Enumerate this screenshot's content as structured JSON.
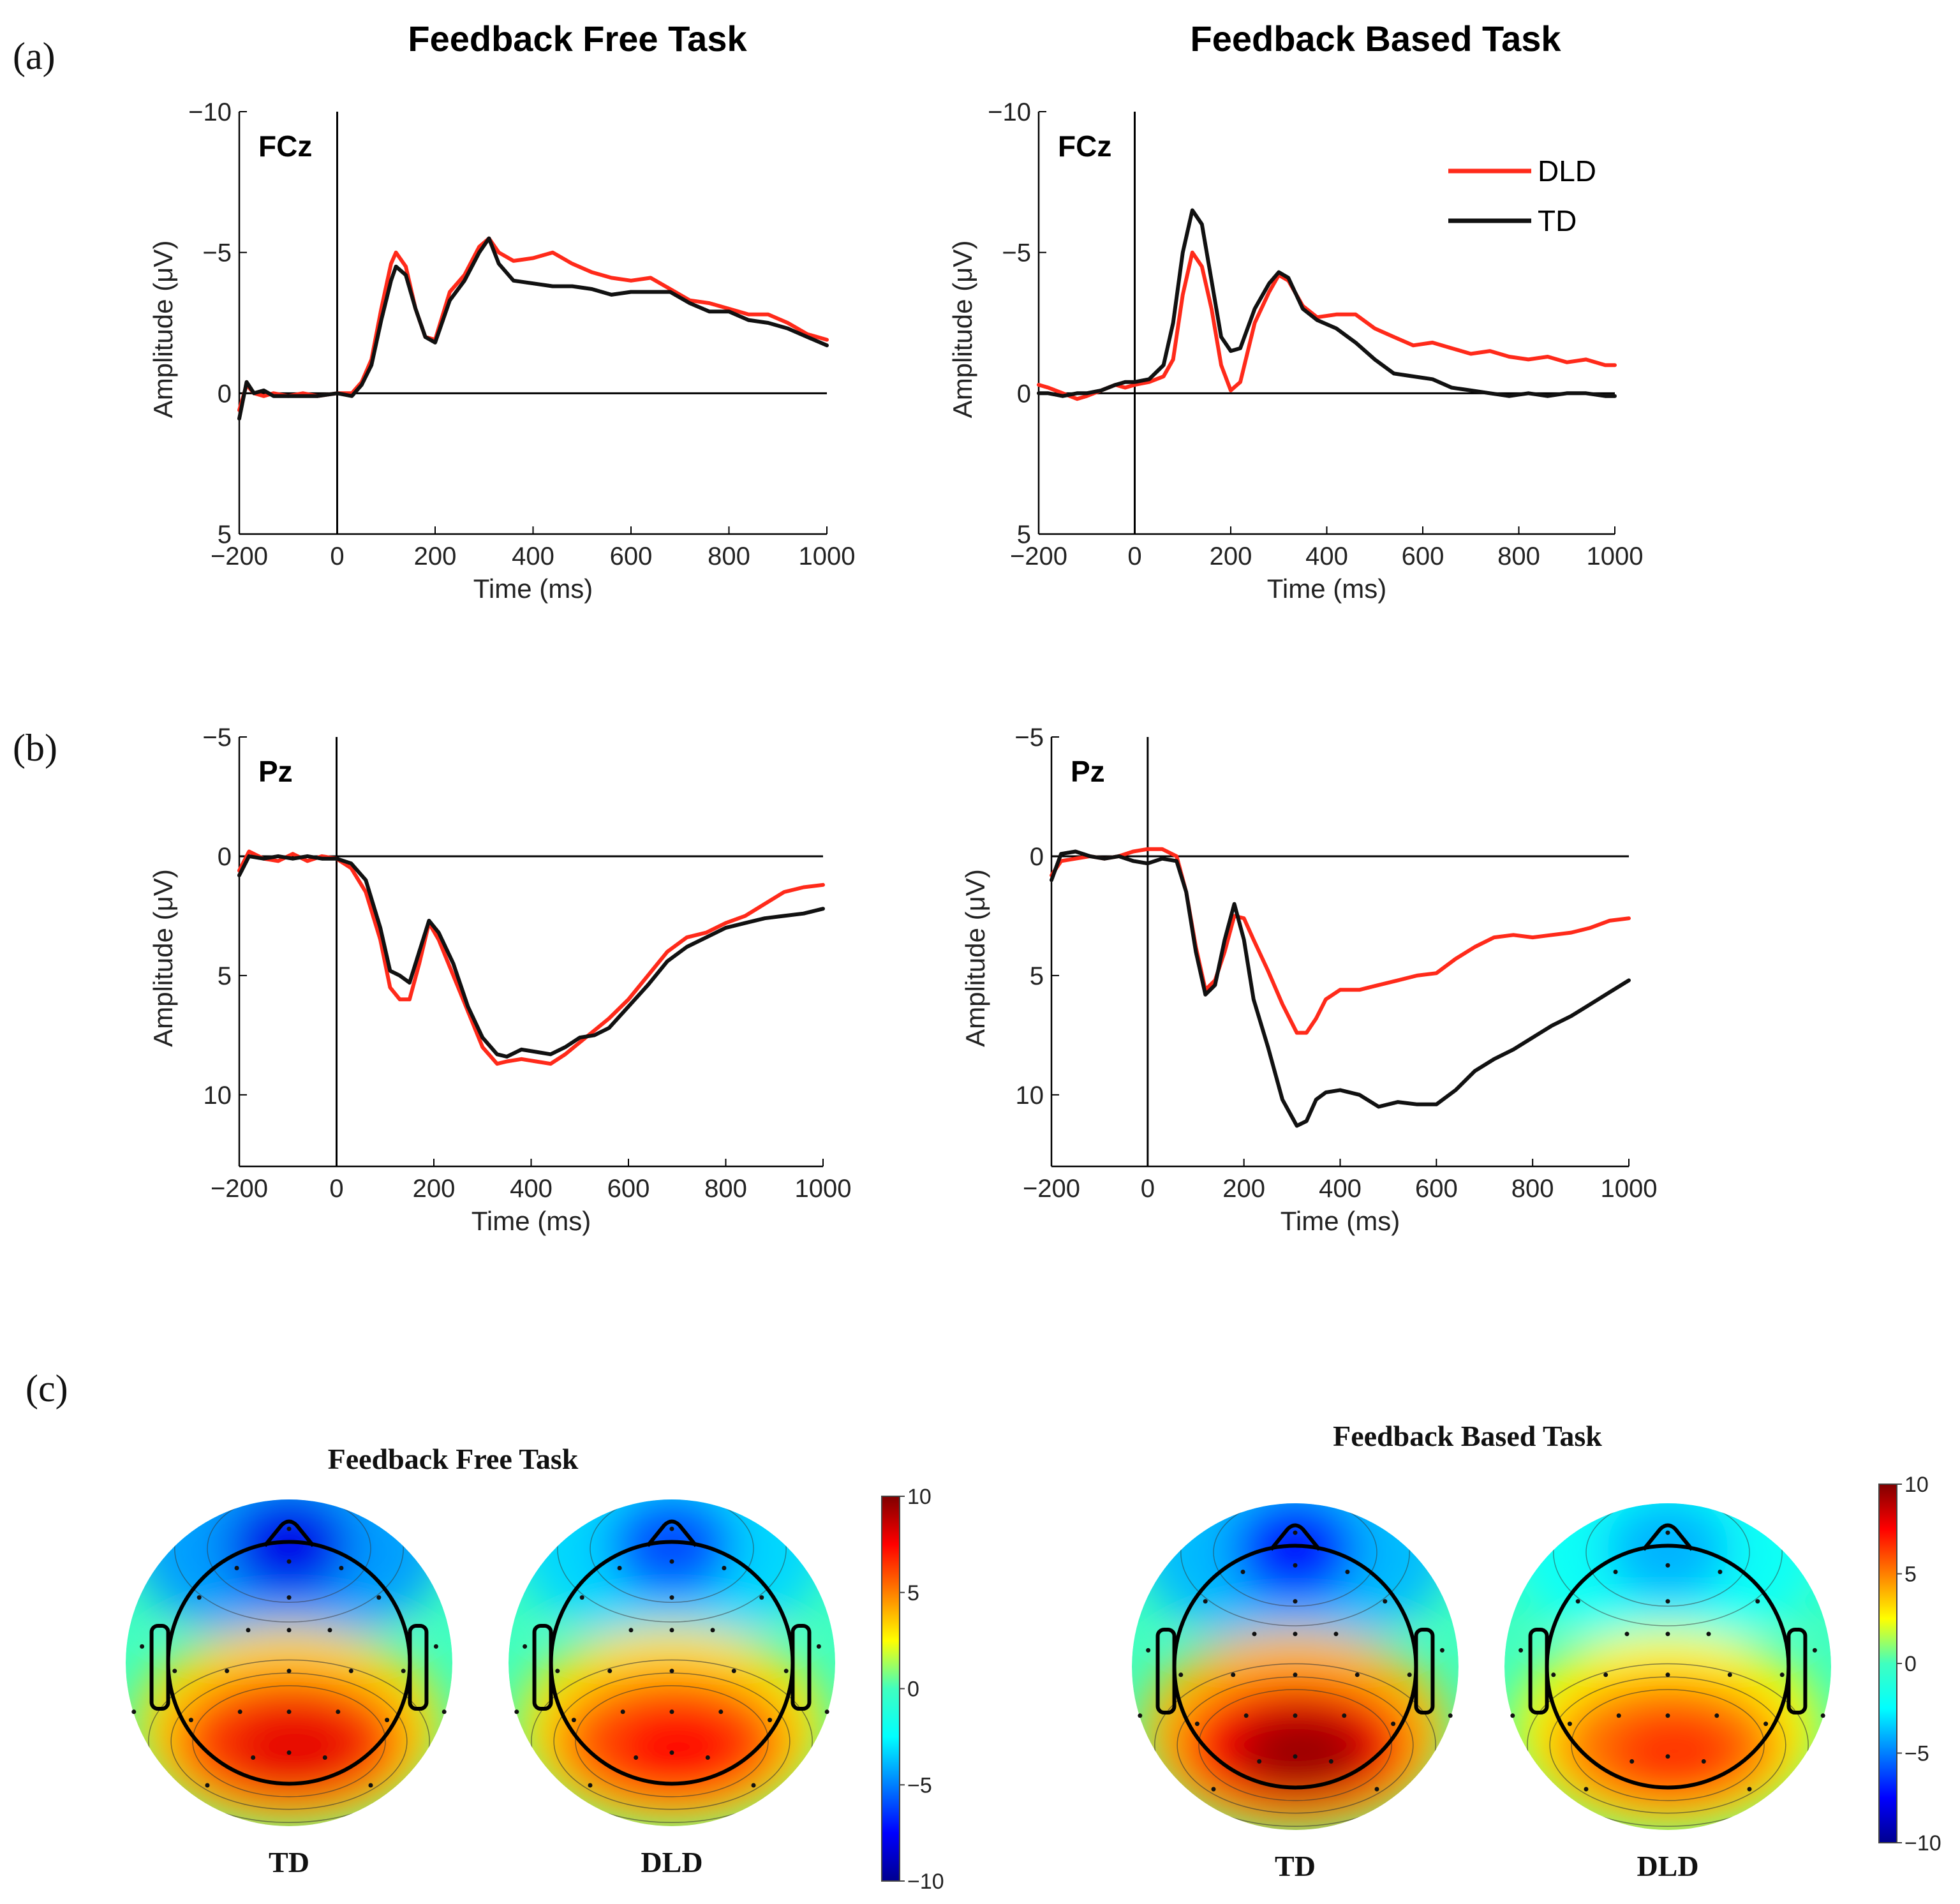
{
  "figure": {
    "panel_a_label": "(a)",
    "panel_b_label": "(b)",
    "panel_c_label": "(c)",
    "column_titles": [
      "Feedback Free Task",
      "Feedback Based Task"
    ]
  },
  "legend": {
    "entries": [
      {
        "name": "DLD",
        "color": "#ff2a1a"
      },
      {
        "name": "TD",
        "color": "#111111"
      }
    ]
  },
  "colors": {
    "dld": "#ff2a1a",
    "td": "#111111",
    "axis": "#000000"
  },
  "chart_data": [
    {
      "type": "line",
      "id": "fcz-free",
      "channel": "FCz",
      "task": "Feedback Free Task",
      "xlabel": "Time (ms)",
      "ylabel": "Amplitude (μV)",
      "xlim": [
        -200,
        1000
      ],
      "ylim": [
        -10,
        5
      ],
      "y_inverted": true,
      "xticks": [
        -200,
        0,
        200,
        400,
        600,
        800,
        1000
      ],
      "yticks": [
        -10,
        -5,
        0,
        5
      ],
      "xtick_labels": [
        "−200",
        "0",
        "200",
        "400",
        "600",
        "800",
        "1000"
      ],
      "ytick_labels": [
        "−10",
        "−5",
        "0",
        "5"
      ],
      "series": [
        {
          "name": "DLD",
          "x": [
            -200,
            -185,
            -170,
            -150,
            -130,
            -100,
            -70,
            -40,
            0,
            30,
            50,
            70,
            90,
            110,
            120,
            140,
            160,
            180,
            200,
            230,
            260,
            290,
            310,
            330,
            360,
            400,
            440,
            480,
            520,
            560,
            600,
            640,
            680,
            720,
            760,
            800,
            840,
            880,
            920,
            960,
            1000
          ],
          "y": [
            0.6,
            -0.3,
            0.0,
            0.1,
            0.0,
            0.1,
            0.0,
            0.1,
            0.0,
            0.0,
            -0.4,
            -1.2,
            -3.0,
            -4.6,
            -5.0,
            -4.5,
            -3.0,
            -2.0,
            -1.9,
            -3.6,
            -4.2,
            -5.2,
            -5.5,
            -5.0,
            -4.7,
            -4.8,
            -5.0,
            -4.6,
            -4.3,
            -4.1,
            -4.0,
            -4.1,
            -3.7,
            -3.3,
            -3.2,
            -3.0,
            -2.8,
            -2.8,
            -2.5,
            -2.1,
            -1.9
          ]
        },
        {
          "name": "TD",
          "x": [
            -200,
            -185,
            -170,
            -150,
            -130,
            -100,
            -70,
            -40,
            0,
            30,
            50,
            70,
            90,
            110,
            120,
            140,
            160,
            180,
            200,
            230,
            260,
            290,
            310,
            330,
            360,
            400,
            440,
            480,
            520,
            560,
            600,
            640,
            680,
            720,
            760,
            800,
            840,
            880,
            920,
            960,
            1000
          ],
          "y": [
            0.9,
            -0.4,
            0.0,
            -0.1,
            0.1,
            0.1,
            0.1,
            0.1,
            0.0,
            0.1,
            -0.3,
            -1.0,
            -2.6,
            -4.0,
            -4.5,
            -4.2,
            -3.0,
            -2.0,
            -1.8,
            -3.3,
            -4.0,
            -5.0,
            -5.5,
            -4.6,
            -4.0,
            -3.9,
            -3.8,
            -3.8,
            -3.7,
            -3.5,
            -3.6,
            -3.6,
            -3.6,
            -3.2,
            -2.9,
            -2.9,
            -2.6,
            -2.5,
            -2.3,
            -2.0,
            -1.7
          ]
        }
      ]
    },
    {
      "type": "line",
      "id": "fcz-based",
      "channel": "FCz",
      "task": "Feedback Based Task",
      "xlabel": "Time (ms)",
      "ylabel": "Amplitude (μV)",
      "xlim": [
        -200,
        1000
      ],
      "ylim": [
        -10,
        5
      ],
      "y_inverted": true,
      "xticks": [
        -200,
        0,
        200,
        400,
        600,
        800,
        1000
      ],
      "yticks": [
        -10,
        -5,
        0,
        5
      ],
      "xtick_labels": [
        "−200",
        "0",
        "200",
        "400",
        "600",
        "800",
        "1000"
      ],
      "ytick_labels": [
        "−10",
        "−5",
        "0",
        "5"
      ],
      "series": [
        {
          "name": "DLD",
          "x": [
            -200,
            -180,
            -150,
            -120,
            -100,
            -70,
            -40,
            -20,
            0,
            30,
            60,
            80,
            100,
            120,
            140,
            160,
            180,
            200,
            220,
            250,
            280,
            300,
            320,
            350,
            380,
            420,
            460,
            500,
            540,
            580,
            620,
            660,
            700,
            740,
            780,
            820,
            860,
            900,
            940,
            980,
            1000
          ],
          "y": [
            -0.3,
            -0.2,
            0.0,
            0.2,
            0.1,
            -0.1,
            -0.3,
            -0.2,
            -0.3,
            -0.4,
            -0.6,
            -1.2,
            -3.5,
            -5.0,
            -4.5,
            -3.0,
            -1.0,
            -0.1,
            -0.4,
            -2.5,
            -3.6,
            -4.2,
            -4.0,
            -3.1,
            -2.7,
            -2.8,
            -2.8,
            -2.3,
            -2.0,
            -1.7,
            -1.8,
            -1.6,
            -1.4,
            -1.5,
            -1.3,
            -1.2,
            -1.3,
            -1.1,
            -1.2,
            -1.0,
            -1.0
          ]
        },
        {
          "name": "TD",
          "x": [
            -200,
            -180,
            -150,
            -120,
            -100,
            -70,
            -40,
            -20,
            0,
            30,
            60,
            80,
            100,
            120,
            140,
            160,
            180,
            200,
            220,
            250,
            280,
            300,
            320,
            350,
            380,
            420,
            460,
            500,
            540,
            580,
            620,
            660,
            700,
            740,
            780,
            820,
            860,
            900,
            940,
            980,
            1000
          ],
          "y": [
            0.0,
            0.0,
            0.1,
            0.0,
            0.0,
            -0.1,
            -0.3,
            -0.4,
            -0.4,
            -0.5,
            -1.0,
            -2.5,
            -5.0,
            -6.5,
            -6.0,
            -4.0,
            -2.0,
            -1.5,
            -1.6,
            -3.0,
            -3.9,
            -4.3,
            -4.1,
            -3.0,
            -2.6,
            -2.3,
            -1.8,
            -1.2,
            -0.7,
            -0.6,
            -0.5,
            -0.2,
            -0.1,
            0.0,
            0.1,
            0.0,
            0.1,
            0.0,
            0.0,
            0.1,
            0.1
          ]
        }
      ]
    },
    {
      "type": "line",
      "id": "pz-free",
      "channel": "Pz",
      "task": "Feedback Free Task",
      "xlabel": "Time (ms)",
      "ylabel": "Amplitude (μV)",
      "xlim": [
        -200,
        1000
      ],
      "ylim": [
        -5,
        13
      ],
      "y_inverted": true,
      "xticks": [
        -200,
        0,
        200,
        400,
        600,
        800,
        1000
      ],
      "yticks": [
        -5,
        0,
        5,
        10
      ],
      "xtick_labels": [
        "−200",
        "0",
        "200",
        "400",
        "600",
        "800",
        "1000"
      ],
      "ytick_labels": [
        "−5",
        "0",
        "5",
        "10"
      ],
      "series": [
        {
          "name": "DLD",
          "x": [
            -200,
            -180,
            -150,
            -120,
            -90,
            -60,
            -30,
            0,
            30,
            60,
            90,
            110,
            130,
            150,
            170,
            190,
            210,
            240,
            270,
            300,
            330,
            350,
            380,
            410,
            440,
            470,
            500,
            530,
            560,
            600,
            640,
            680,
            720,
            760,
            800,
            840,
            880,
            920,
            960,
            1000
          ],
          "y": [
            0.6,
            -0.2,
            0.1,
            0.2,
            -0.1,
            0.2,
            0.0,
            0.1,
            0.5,
            1.5,
            3.5,
            5.5,
            6.0,
            6.0,
            4.5,
            2.8,
            3.5,
            5.0,
            6.5,
            8.0,
            8.7,
            8.6,
            8.5,
            8.6,
            8.7,
            8.3,
            7.8,
            7.3,
            6.8,
            6.0,
            5.0,
            4.0,
            3.4,
            3.2,
            2.8,
            2.5,
            2.0,
            1.5,
            1.3,
            1.2
          ]
        },
        {
          "name": "TD",
          "x": [
            -200,
            -180,
            -150,
            -120,
            -90,
            -60,
            -30,
            0,
            30,
            60,
            90,
            110,
            130,
            150,
            170,
            190,
            210,
            240,
            270,
            300,
            330,
            350,
            380,
            410,
            440,
            470,
            500,
            530,
            560,
            600,
            640,
            680,
            720,
            760,
            800,
            840,
            880,
            920,
            960,
            1000
          ],
          "y": [
            0.8,
            0.0,
            0.1,
            0.0,
            0.1,
            0.0,
            0.1,
            0.1,
            0.3,
            1.0,
            3.0,
            4.8,
            5.0,
            5.3,
            4.0,
            2.7,
            3.2,
            4.5,
            6.3,
            7.6,
            8.3,
            8.4,
            8.1,
            8.2,
            8.3,
            8.0,
            7.6,
            7.5,
            7.2,
            6.3,
            5.4,
            4.4,
            3.8,
            3.4,
            3.0,
            2.8,
            2.6,
            2.5,
            2.4,
            2.2
          ]
        }
      ]
    },
    {
      "type": "line",
      "id": "pz-based",
      "channel": "Pz",
      "task": "Feedback Based Task",
      "xlabel": "Time (ms)",
      "ylabel": "Amplitude (μV)",
      "xlim": [
        -200,
        1000
      ],
      "ylim": [
        -5,
        13
      ],
      "y_inverted": true,
      "xticks": [
        -200,
        0,
        200,
        400,
        600,
        800,
        1000
      ],
      "yticks": [
        -5,
        0,
        5,
        10
      ],
      "xtick_labels": [
        "−200",
        "0",
        "200",
        "400",
        "600",
        "800",
        "1000"
      ],
      "ytick_labels": [
        "−5",
        "0",
        "5",
        "10"
      ],
      "series": [
        {
          "name": "DLD",
          "x": [
            -200,
            -180,
            -150,
            -120,
            -90,
            -60,
            -30,
            0,
            30,
            60,
            80,
            100,
            120,
            140,
            160,
            180,
            200,
            220,
            250,
            280,
            310,
            330,
            350,
            370,
            400,
            440,
            480,
            520,
            560,
            600,
            640,
            680,
            720,
            760,
            800,
            840,
            880,
            920,
            960,
            1000
          ],
          "y": [
            0.8,
            0.2,
            0.1,
            0.0,
            0.1,
            0.0,
            -0.2,
            -0.3,
            -0.3,
            0.0,
            1.5,
            3.8,
            5.6,
            5.2,
            4.0,
            2.5,
            2.6,
            3.5,
            4.8,
            6.2,
            7.4,
            7.4,
            6.8,
            6.0,
            5.6,
            5.6,
            5.4,
            5.2,
            5.0,
            4.9,
            4.3,
            3.8,
            3.4,
            3.3,
            3.4,
            3.3,
            3.2,
            3.0,
            2.7,
            2.6
          ]
        },
        {
          "name": "TD",
          "x": [
            -200,
            -180,
            -150,
            -120,
            -90,
            -60,
            -30,
            0,
            30,
            60,
            80,
            100,
            120,
            140,
            160,
            180,
            200,
            220,
            250,
            280,
            310,
            330,
            350,
            370,
            400,
            440,
            480,
            520,
            560,
            600,
            640,
            680,
            720,
            760,
            800,
            840,
            880,
            920,
            960,
            1000
          ],
          "y": [
            1.0,
            -0.1,
            -0.2,
            0.0,
            0.1,
            0.0,
            0.2,
            0.3,
            0.1,
            0.2,
            1.5,
            4.0,
            5.8,
            5.4,
            3.5,
            2.0,
            3.5,
            6.0,
            8.0,
            10.2,
            11.3,
            11.1,
            10.2,
            9.9,
            9.8,
            10.0,
            10.5,
            10.3,
            10.4,
            10.4,
            9.8,
            9.0,
            8.5,
            8.1,
            7.6,
            7.1,
            6.7,
            6.2,
            5.7,
            5.2
          ]
        }
      ]
    },
    {
      "type": "heatmap",
      "id": "topomaps",
      "colormap": "jet",
      "colorbar_range": [
        -10,
        10
      ],
      "colorbar_ticks": [
        10,
        5,
        0,
        -5,
        -10
      ],
      "colorbar_tick_labels": [
        "10",
        "5",
        "0",
        "−5",
        "−10"
      ],
      "groups": [
        {
          "title": "Feedback Free Task",
          "maps": [
            {
              "label": "TD",
              "frontal_min": -8,
              "parietal_max": 8
            },
            {
              "label": "DLD",
              "frontal_min": -6,
              "parietal_max": 7.5
            }
          ]
        },
        {
          "title": "Feedback Based Task",
          "maps": [
            {
              "label": "TD",
              "frontal_min": -7,
              "parietal_max": 9.5
            },
            {
              "label": "DLD",
              "frontal_min": -4,
              "parietal_max": 6.5
            }
          ]
        }
      ]
    }
  ]
}
